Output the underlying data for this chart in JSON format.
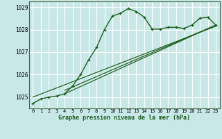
{
  "xlabel": "Graphe pression niveau de la mer (hPa)",
  "bg_color": "#c8e8e8",
  "grid_color": "#ffffff",
  "grid_minor_color": "#d8ecec",
  "line_color": "#1a5c1a",
  "ylim": [
    1024.5,
    1029.25
  ],
  "xlim": [
    -0.5,
    23.5
  ],
  "yticks": [
    1025,
    1026,
    1027,
    1028,
    1029
  ],
  "xticks": [
    0,
    1,
    2,
    3,
    4,
    5,
    6,
    7,
    8,
    9,
    10,
    11,
    12,
    13,
    14,
    15,
    16,
    17,
    18,
    19,
    20,
    21,
    22,
    23
  ],
  "series1_x": [
    0,
    1,
    2,
    3,
    4,
    5,
    6,
    7,
    8,
    9,
    10,
    11,
    12,
    13,
    14,
    15,
    16,
    17,
    18,
    19,
    20,
    21,
    22,
    23
  ],
  "series1_y": [
    1024.72,
    1024.92,
    1025.0,
    1025.05,
    1025.15,
    1025.5,
    1026.0,
    1026.65,
    1027.2,
    1028.0,
    1028.6,
    1028.72,
    1028.93,
    1028.8,
    1028.55,
    1028.02,
    1028.02,
    1028.1,
    1028.1,
    1028.05,
    1028.2,
    1028.5,
    1028.55,
    1028.2
  ],
  "series2_x": [
    4,
    23
  ],
  "series2_y": [
    1025.15,
    1028.2
  ],
  "series3_x": [
    4,
    23
  ],
  "series3_y": [
    1025.3,
    1028.2
  ],
  "series4_x": [
    0,
    23
  ],
  "series4_y": [
    1025.0,
    1028.15
  ]
}
